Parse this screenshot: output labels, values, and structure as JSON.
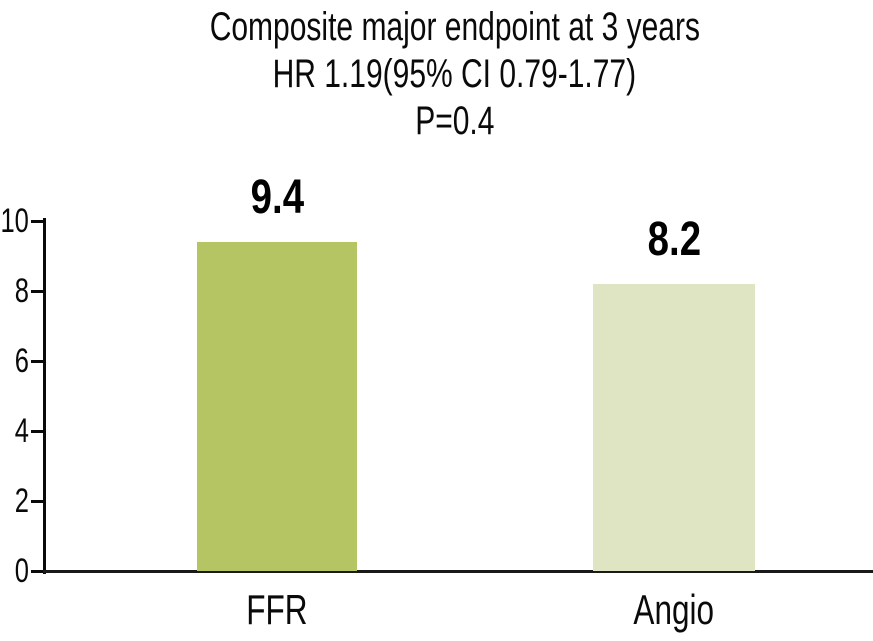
{
  "title": {
    "line1": "Composite major endpoint at 3 years",
    "line2": "HR 1.19(95% CI 0.79-1.77)",
    "line3": "P=0.4"
  },
  "chart_data": {
    "type": "bar",
    "title": "Composite major endpoint at 3 years HR 1.19(95% CI 0.79-1.77) P=0.4",
    "categories": [
      "FFR",
      "Angio"
    ],
    "values": [
      9.4,
      8.2
    ],
    "value_labels": [
      "9.4",
      "8.2"
    ],
    "bar_colors": [
      "#b6c563",
      "#dfe4c2"
    ],
    "xlabel": "",
    "ylabel": "",
    "ylim": [
      0,
      10
    ],
    "yticks": [
      0,
      2,
      4,
      6,
      8,
      10
    ],
    "ytick_labels": [
      "0",
      "2",
      "4",
      "6",
      "8",
      "10"
    ],
    "grid": false,
    "legend": false,
    "background_color": "#ffffff",
    "text_color": "#0a0a0a"
  }
}
